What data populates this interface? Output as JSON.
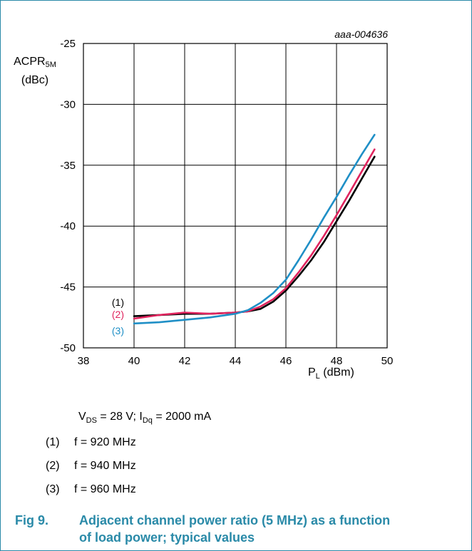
{
  "figure_id": "aaa-004636",
  "y_axis": {
    "label": "ACPR",
    "sub": "5M",
    "unit": "(dBc)"
  },
  "x_axis": {
    "label": "P",
    "sub": "L",
    "unit": " (dBm)"
  },
  "conditions": {
    "vds": "V",
    "vds_sub": "DS",
    "vds_value": " = 28 V; I",
    "idq_sub": "Dq",
    "idq_value": " = 2000 mA"
  },
  "legend": [
    {
      "num": "(1)",
      "text": "f = 920 MHz"
    },
    {
      "num": "(2)",
      "text": "f = 940 MHz"
    },
    {
      "num": "(3)",
      "text": "f = 960 MHz"
    }
  ],
  "caption": {
    "number": "Fig 9.",
    "text": "Adjacent channel power ratio (5 MHz) as a function of load power; typical values"
  },
  "chart_data": {
    "type": "line",
    "xlim": [
      38,
      50
    ],
    "ylim": [
      -50,
      -25
    ],
    "x_ticks": [
      38,
      40,
      42,
      44,
      46,
      48,
      50
    ],
    "y_ticks": [
      -25,
      -30,
      -35,
      -40,
      -45,
      -50
    ],
    "grid": true,
    "series": [
      {
        "name": "(1)",
        "color": "#000000",
        "x": [
          40,
          41,
          42,
          43,
          44,
          44.5,
          45,
          45.5,
          46,
          46.5,
          47,
          47.5,
          48,
          48.5,
          49,
          49.5
        ],
        "y": [
          -47.4,
          -47.3,
          -47.2,
          -47.2,
          -47.1,
          -47.0,
          -46.8,
          -46.2,
          -45.3,
          -44.1,
          -42.8,
          -41.3,
          -39.6,
          -37.9,
          -36.1,
          -34.3
        ]
      },
      {
        "name": "(2)",
        "color": "#e0245e",
        "x": [
          40,
          41,
          42,
          43,
          44,
          44.5,
          45,
          45.5,
          46,
          46.5,
          47,
          47.5,
          48,
          48.5,
          49,
          49.5
        ],
        "y": [
          -47.6,
          -47.3,
          -47.1,
          -47.2,
          -47.1,
          -47.0,
          -46.6,
          -46.0,
          -45.1,
          -43.8,
          -42.4,
          -40.8,
          -39.1,
          -37.3,
          -35.5,
          -33.7
        ]
      },
      {
        "name": "(3)",
        "color": "#1f8fc6",
        "x": [
          40,
          41,
          42,
          43,
          44,
          44.5,
          45,
          45.5,
          46,
          46.5,
          47,
          47.5,
          48,
          48.5,
          49,
          49.5
        ],
        "y": [
          -48.0,
          -47.9,
          -47.7,
          -47.5,
          -47.2,
          -46.9,
          -46.3,
          -45.5,
          -44.4,
          -42.8,
          -41.1,
          -39.3,
          -37.6,
          -35.8,
          -34.1,
          -32.5
        ]
      }
    ],
    "label_colors": [
      "#000000",
      "#e0245e",
      "#1f8fc6"
    ]
  }
}
